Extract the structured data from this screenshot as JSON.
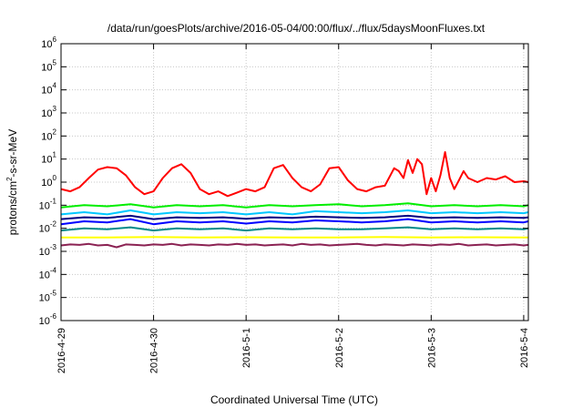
{
  "chart_data": {
    "type": "line",
    "title": "/data/run/goesPlots/archive/2016-05-04/00:00/flux/../flux/5daysMoonFluxes.txt",
    "xlabel": "Coordinated Universal Time (UTC)",
    "ylabel_prefix": "protons/cm",
    "ylabel_sup": "2",
    "ylabel_suffix": "-s-sr-MeV",
    "x_tick_labels": [
      "2016-4-29",
      "2016-4-30",
      "2016-5-1",
      "2016-5-2",
      "2016-5-3",
      "2016-5-4"
    ],
    "x_unit": "days",
    "x_start_label": "2016-4-29",
    "xlim": [
      0,
      5.05
    ],
    "y_scale": "log",
    "ylim": [
      1e-06,
      1000000.0
    ],
    "y_tick_base": "10",
    "y_tick_exponents": [
      "-6",
      "-5",
      "-4",
      "-3",
      "-2",
      "-1",
      "0",
      "1",
      "2",
      "3",
      "4",
      "5",
      "6"
    ],
    "grid": true,
    "series": [
      {
        "color": "#ff0000",
        "x": [
          0,
          0.1,
          0.2,
          0.3,
          0.4,
          0.5,
          0.6,
          0.7,
          0.8,
          0.9,
          1.0,
          1.1,
          1.2,
          1.3,
          1.4,
          1.5,
          1.6,
          1.7,
          1.8,
          1.9,
          2.0,
          2.1,
          2.2,
          2.3,
          2.4,
          2.5,
          2.6,
          2.7,
          2.8,
          2.9,
          3.0,
          3.1,
          3.2,
          3.3,
          3.4,
          3.5,
          3.6,
          3.65,
          3.7,
          3.75,
          3.8,
          3.85,
          3.9,
          3.95,
          4.0,
          4.05,
          4.1,
          4.15,
          4.2,
          4.25,
          4.3,
          4.35,
          4.4,
          4.5,
          4.6,
          4.7,
          4.8,
          4.9,
          5.0,
          5.05
        ],
        "y": [
          0.5,
          0.4,
          0.6,
          1.5,
          3.5,
          4.5,
          4.0,
          2.0,
          0.6,
          0.3,
          0.4,
          1.5,
          4.0,
          6.0,
          2.5,
          0.5,
          0.3,
          0.4,
          0.25,
          0.35,
          0.5,
          0.4,
          0.6,
          4.0,
          5.5,
          1.5,
          0.6,
          0.4,
          0.8,
          4.0,
          4.5,
          1.2,
          0.5,
          0.4,
          0.6,
          0.7,
          4.0,
          3.0,
          1.5,
          9.0,
          2.5,
          10.0,
          6.0,
          0.3,
          1.5,
          0.4,
          2.0,
          20.0,
          1.5,
          0.5,
          1.2,
          3.0,
          1.5,
          1.0,
          1.5,
          1.3,
          1.8,
          1.0,
          1.1,
          1.0
        ]
      },
      {
        "color": "#00ee00",
        "x": [
          0,
          0.25,
          0.5,
          0.75,
          1.0,
          1.25,
          1.5,
          1.75,
          2.0,
          2.25,
          2.5,
          2.75,
          3.0,
          3.25,
          3.5,
          3.75,
          4.0,
          4.25,
          4.5,
          4.75,
          5.0,
          5.05
        ],
        "y": [
          0.08,
          0.1,
          0.09,
          0.11,
          0.08,
          0.1,
          0.09,
          0.1,
          0.08,
          0.1,
          0.09,
          0.1,
          0.11,
          0.09,
          0.1,
          0.12,
          0.09,
          0.1,
          0.09,
          0.1,
          0.09,
          0.1
        ]
      },
      {
        "color": "#00c8ff",
        "x": [
          0,
          0.25,
          0.5,
          0.75,
          1.0,
          1.25,
          1.5,
          1.75,
          2.0,
          2.25,
          2.5,
          2.75,
          3.0,
          3.25,
          3.5,
          3.75,
          4.0,
          4.25,
          4.5,
          4.75,
          5.0,
          5.05
        ],
        "y": [
          0.04,
          0.05,
          0.04,
          0.06,
          0.04,
          0.05,
          0.045,
          0.05,
          0.04,
          0.05,
          0.04,
          0.055,
          0.05,
          0.045,
          0.05,
          0.06,
          0.045,
          0.05,
          0.045,
          0.05,
          0.045,
          0.05
        ]
      },
      {
        "color": "#0000ff",
        "x": [
          0,
          0.25,
          0.5,
          0.75,
          1.0,
          1.25,
          1.5,
          1.75,
          2.0,
          2.25,
          2.5,
          2.75,
          3.0,
          3.25,
          3.5,
          3.75,
          4.0,
          4.25,
          4.5,
          4.75,
          5.0,
          5.05
        ],
        "y": [
          0.015,
          0.02,
          0.018,
          0.025,
          0.015,
          0.02,
          0.018,
          0.02,
          0.016,
          0.02,
          0.018,
          0.022,
          0.02,
          0.018,
          0.02,
          0.025,
          0.018,
          0.02,
          0.018,
          0.02,
          0.018,
          0.02
        ]
      },
      {
        "color": "#000080",
        "x": [
          0,
          0.25,
          0.5,
          0.75,
          1.0,
          1.25,
          1.5,
          1.75,
          2.0,
          2.25,
          2.5,
          2.75,
          3.0,
          3.25,
          3.5,
          3.75,
          4.0,
          4.25,
          4.5,
          4.75,
          5.0,
          5.05
        ],
        "y": [
          0.025,
          0.03,
          0.028,
          0.035,
          0.025,
          0.03,
          0.028,
          0.03,
          0.026,
          0.03,
          0.028,
          0.032,
          0.03,
          0.028,
          0.03,
          0.035,
          0.028,
          0.03,
          0.028,
          0.03,
          0.028,
          0.03
        ]
      },
      {
        "color": "#008b8b",
        "x": [
          0,
          0.25,
          0.5,
          0.75,
          1.0,
          1.25,
          1.5,
          1.75,
          2.0,
          2.25,
          2.5,
          2.75,
          3.0,
          3.25,
          3.5,
          3.75,
          4.0,
          4.25,
          4.5,
          4.75,
          5.0,
          5.05
        ],
        "y": [
          0.008,
          0.01,
          0.009,
          0.011,
          0.008,
          0.01,
          0.009,
          0.01,
          0.008,
          0.01,
          0.009,
          0.01,
          0.009,
          0.009,
          0.01,
          0.011,
          0.009,
          0.01,
          0.009,
          0.01,
          0.009,
          0.01
        ]
      },
      {
        "color": "#ffff00",
        "x": [
          0,
          0.5,
          1.0,
          1.5,
          2.0,
          2.5,
          3.0,
          3.5,
          4.0,
          4.5,
          5.0,
          5.05
        ],
        "y": [
          0.004,
          0.004,
          0.0042,
          0.004,
          0.0041,
          0.004,
          0.004,
          0.0042,
          0.004,
          0.0041,
          0.004,
          0.004
        ]
      },
      {
        "color": "#8b2252",
        "x": [
          0,
          0.1,
          0.2,
          0.3,
          0.4,
          0.5,
          0.6,
          0.7,
          0.8,
          0.9,
          1.0,
          1.1,
          1.2,
          1.3,
          1.4,
          1.5,
          1.6,
          1.7,
          1.8,
          1.9,
          2.0,
          2.1,
          2.2,
          2.3,
          2.4,
          2.5,
          2.6,
          2.7,
          2.8,
          2.9,
          3.0,
          3.1,
          3.2,
          3.3,
          3.4,
          3.5,
          3.6,
          3.7,
          3.8,
          3.9,
          4.0,
          4.1,
          4.2,
          4.3,
          4.4,
          4.5,
          4.6,
          4.7,
          4.8,
          4.9,
          5.0,
          5.05
        ],
        "y": [
          0.0018,
          0.002,
          0.0019,
          0.0021,
          0.0018,
          0.0019,
          0.0015,
          0.002,
          0.0019,
          0.0018,
          0.002,
          0.0019,
          0.0021,
          0.0018,
          0.002,
          0.0019,
          0.0018,
          0.002,
          0.0019,
          0.0021,
          0.0019,
          0.002,
          0.0018,
          0.0019,
          0.002,
          0.0018,
          0.0021,
          0.0019,
          0.002,
          0.0018,
          0.0019,
          0.002,
          0.0021,
          0.0019,
          0.0018,
          0.002,
          0.0019,
          0.0018,
          0.002,
          0.0019,
          0.0018,
          0.002,
          0.0019,
          0.0021,
          0.0018,
          0.0019,
          0.002,
          0.0018,
          0.0019,
          0.002,
          0.0018,
          0.0019
        ]
      }
    ]
  }
}
